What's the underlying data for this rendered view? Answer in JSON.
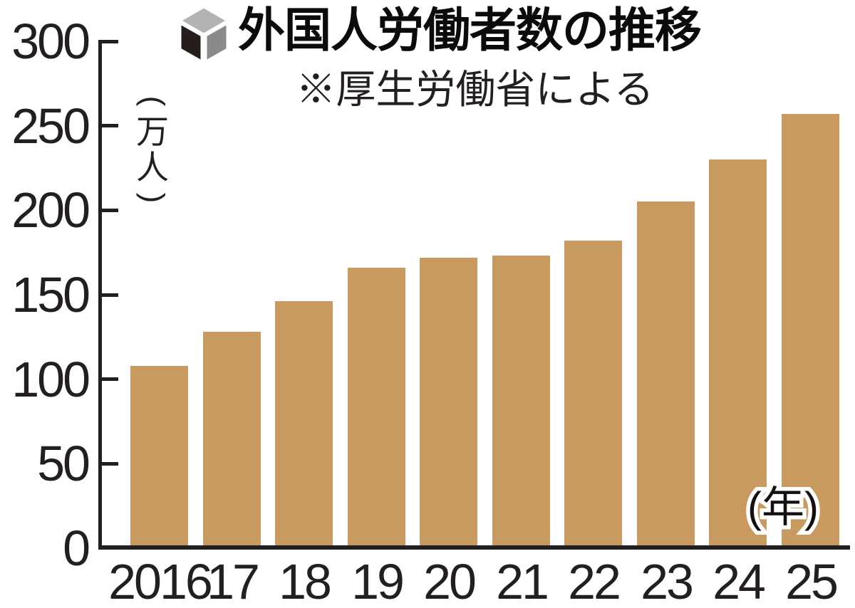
{
  "title": {
    "text": "外国人労働者数の推移",
    "icon": "cube-icon",
    "icon_colors": {
      "top": "#b3b3b4",
      "left": "#241d1b",
      "right": "#8a8a8d",
      "edge": "#ffffff"
    }
  },
  "subtitle": "※厚生労働省による",
  "labels": {
    "year_axis_label": "(年)",
    "unit_chars": [
      "(",
      "万",
      "人",
      ")"
    ]
  },
  "chart_data": {
    "type": "bar",
    "title": "外国人労働者数の推移",
    "subtitle": "※厚生労働省による",
    "series_name": "外国人労働者数",
    "categories": [
      "2016",
      "17",
      "18",
      "19",
      "20",
      "21",
      "22",
      "23",
      "24",
      "25"
    ],
    "values": [
      108,
      128,
      146,
      166,
      172,
      173,
      182,
      205,
      230,
      257
    ],
    "unit": "万人",
    "xlabel": "(年)",
    "ylabel": "(万人)",
    "ylim": [
      0,
      300
    ],
    "yticks": [
      300,
      250,
      200,
      150,
      100,
      50,
      0
    ],
    "grid": false,
    "legend": false,
    "bar_color": "#c89a5f",
    "axis_color": "#231f20",
    "background_color": "#ffffff"
  }
}
